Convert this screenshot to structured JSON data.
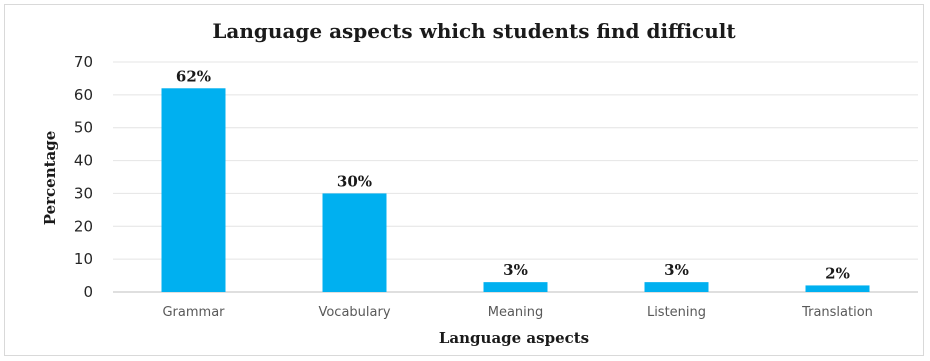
{
  "chart_data": {
    "type": "bar",
    "title": "Language aspects which students find difficult",
    "xlabel": "Language aspects",
    "ylabel": "Percentage",
    "categories": [
      "Grammar",
      "Vocabulary",
      "Meaning",
      "Listening",
      "Translation"
    ],
    "values": [
      62,
      30,
      3,
      3,
      2
    ],
    "data_labels": [
      "62%",
      "30%",
      "3%",
      "3%",
      "2%"
    ],
    "ylim": [
      0,
      70
    ],
    "yticks": [
      0,
      10,
      20,
      30,
      40,
      50,
      60,
      70
    ],
    "grid": true,
    "legend": "none",
    "bar_color": "#00b0f0",
    "grid_color": "#e4e4e4"
  }
}
